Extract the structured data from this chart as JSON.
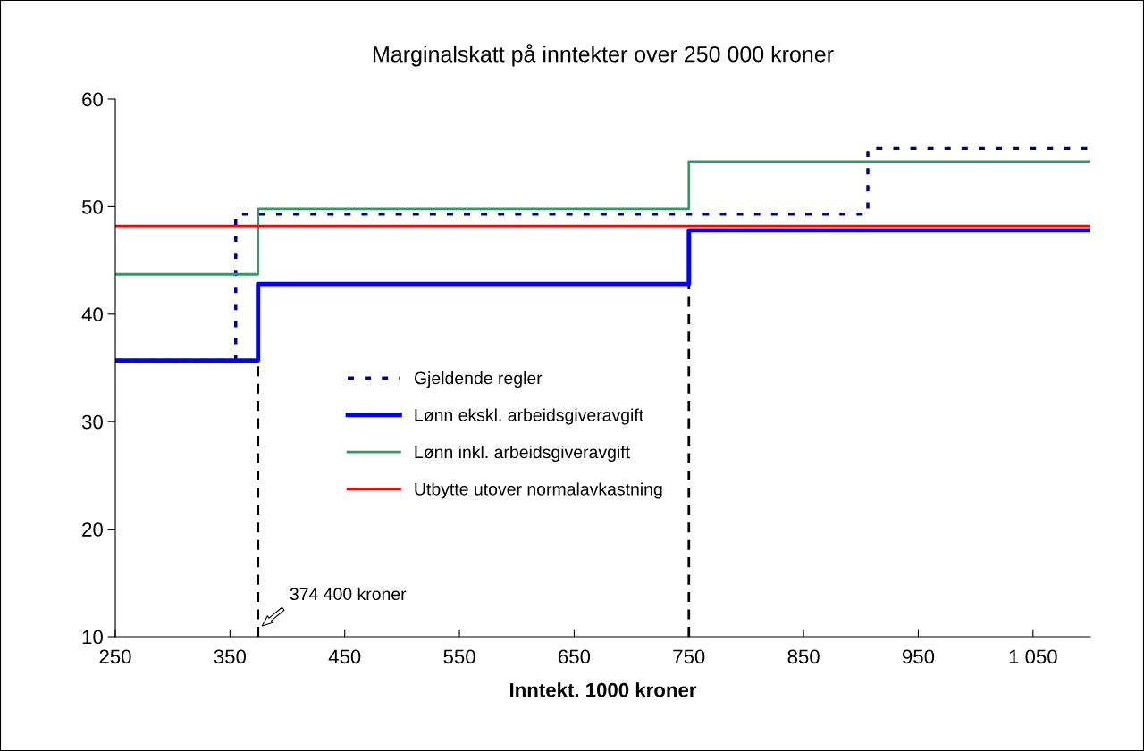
{
  "chart_data": {
    "type": "step",
    "title": "Marginalskatt på inntekter over 250 000 kroner",
    "xlabel": "Inntekt. 1000 kroner",
    "series": [
      {
        "name": "Gjeldende regler",
        "color": "#000080",
        "line_style": "dotted",
        "x": [
          250,
          355,
          906,
          1100
        ],
        "values": [
          35.7,
          49.3,
          55.4,
          55.4
        ]
      },
      {
        "name": "Lønn ekskl. arbeidsgiveravgift",
        "color": "#0000ff",
        "line_style": "solid",
        "x": [
          250,
          374.4,
          750,
          1100
        ],
        "values": [
          35.7,
          42.8,
          47.8,
          47.8
        ]
      },
      {
        "name": "Lønn inkl. arbeidsgiveravgift",
        "color": "#339966",
        "line_style": "solid",
        "x": [
          250,
          374.4,
          750,
          1100
        ],
        "values": [
          43.7,
          49.8,
          54.2,
          54.2
        ]
      },
      {
        "name": "Utbytte utover normalavkastning",
        "color": "#ff0000",
        "line_style": "solid",
        "x": [
          250,
          1100
        ],
        "values": [
          48.2,
          48.2
        ]
      }
    ],
    "ref_lines": [
      {
        "axis": "x",
        "value": 374.4,
        "color": "#000000",
        "line_style": "dashed"
      },
      {
        "axis": "x",
        "value": 750,
        "color": "#000000",
        "line_style": "dashed"
      }
    ],
    "annotations": [
      {
        "text": "374 400 kroner",
        "x": 378,
        "y": 11
      }
    ],
    "xlim": [
      250,
      1100
    ],
    "xticks": [
      250,
      350,
      450,
      550,
      650,
      750,
      850,
      950,
      {
        "value": 1050,
        "label": "1 050"
      }
    ],
    "ylim": [
      10,
      60
    ],
    "yticks": [
      10,
      20,
      30,
      40,
      50,
      60
    ],
    "grid": false,
    "legend": "center",
    "marker": "none"
  }
}
